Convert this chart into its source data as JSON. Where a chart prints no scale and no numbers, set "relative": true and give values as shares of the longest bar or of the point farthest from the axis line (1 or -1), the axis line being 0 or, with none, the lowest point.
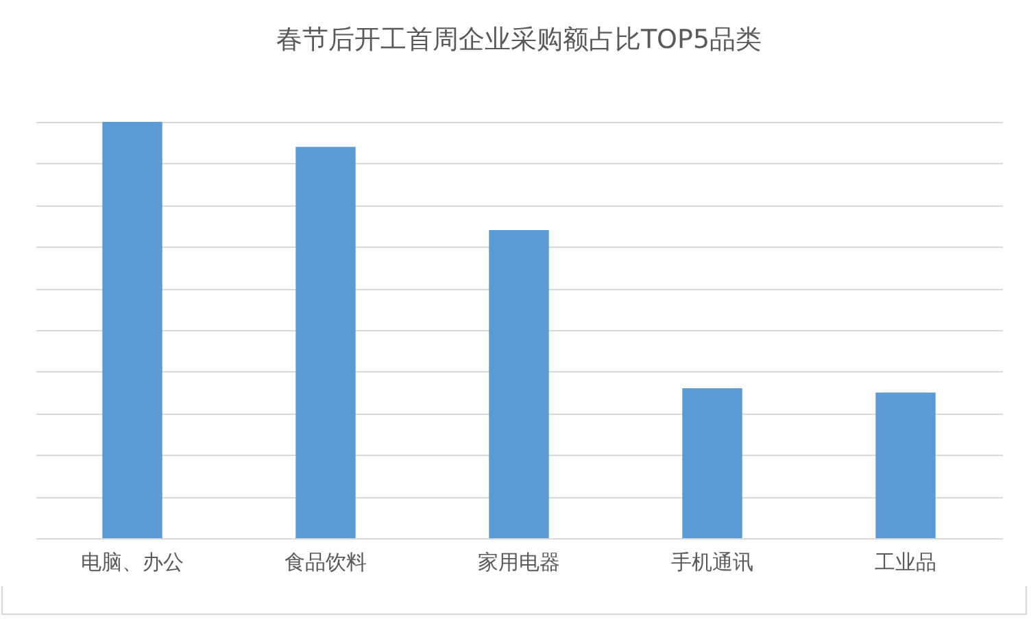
{
  "chart_data": {
    "type": "bar",
    "title": "春节后开工首周企业采购额占比TOP5品类",
    "categories": [
      "电脑、办公",
      "食品饮料",
      "家用电器",
      "手机通讯",
      "工业品"
    ],
    "values": [
      1,
      0.94,
      0.74,
      0.36,
      0.35
    ],
    "color": "#5b9bd5",
    "relative": true,
    "grid": "y"
  }
}
